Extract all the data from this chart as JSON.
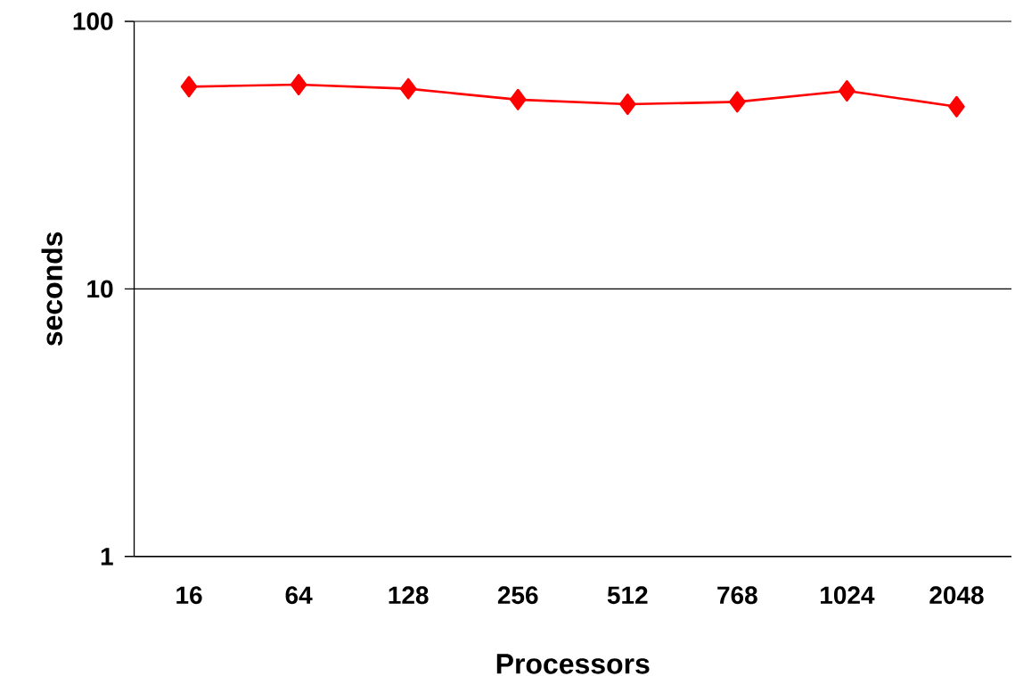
{
  "chart_data": {
    "type": "line",
    "xlabel": "Processors",
    "ylabel": "seconds",
    "categories": [
      "16",
      "64",
      "128",
      "256",
      "512",
      "768",
      "1024",
      "2048"
    ],
    "series": [
      {
        "color": "#ff0000",
        "values": [
          57,
          58,
          56,
          51,
          49,
          50,
          55,
          48
        ]
      }
    ],
    "log": true,
    "ylim": [
      1,
      100
    ],
    "yticks": [
      1,
      10,
      100
    ],
    "grid": "y",
    "marker": "diamond",
    "line_style": "solid"
  }
}
